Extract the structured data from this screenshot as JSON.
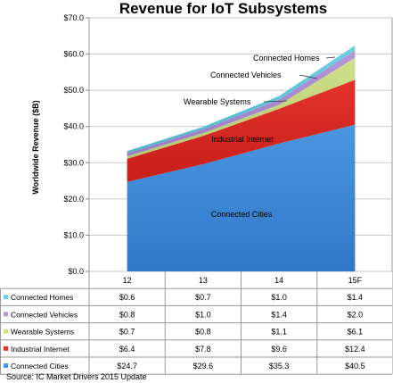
{
  "chart_data": {
    "type": "area",
    "title": "Revenue for IoT Subsystems",
    "ylabel": "Worldwide Revenue ($B)",
    "xlabel": "",
    "ylim": [
      0,
      70
    ],
    "yticks": [
      "$0.0",
      "$10.0",
      "$20.0",
      "$30.0",
      "$40.0",
      "$50.0",
      "$60.0",
      "$70.0"
    ],
    "categories": [
      "12",
      "13",
      "14",
      "15F"
    ],
    "stacked": true,
    "grid": true,
    "series": [
      {
        "name": "Connected Cities",
        "values": [
          24.7,
          29.6,
          35.3,
          40.5
        ],
        "labels": [
          "$24.7",
          "$29.6",
          "$35.3",
          "$40.5"
        ],
        "color": "#4a96e0"
      },
      {
        "name": "Industrial Internet",
        "values": [
          6.4,
          7.8,
          9.6,
          12.4
        ],
        "labels": [
          "$6.4",
          "$7.8",
          "$9.6",
          "$12.4"
        ],
        "color": "#e4322a"
      },
      {
        "name": "Wearable Systems",
        "values": [
          0.7,
          0.8,
          1.1,
          6.1
        ],
        "labels": [
          "$0.7",
          "$0.8",
          "$1.1",
          "$6.1"
        ],
        "color": "#cfe08a"
      },
      {
        "name": "Connected Vehicles",
        "values": [
          0.8,
          1.0,
          1.4,
          2.0
        ],
        "labels": [
          "$0.8",
          "$1.0",
          "$1.4",
          "$2.0"
        ],
        "color": "#b596d8"
      },
      {
        "name": "Connected Homes",
        "values": [
          0.6,
          0.7,
          1.0,
          1.4
        ],
        "labels": [
          "$0.6",
          "$0.7",
          "$1.0",
          "$1.4"
        ],
        "color": "#6fd0e4"
      }
    ],
    "table_order": [
      "Connected Homes",
      "Connected Vehicles",
      "Wearable Systems",
      "Industrial Internet",
      "Connected Cities"
    ],
    "source": "Source:  IC Market Drivers 2015 Update"
  }
}
